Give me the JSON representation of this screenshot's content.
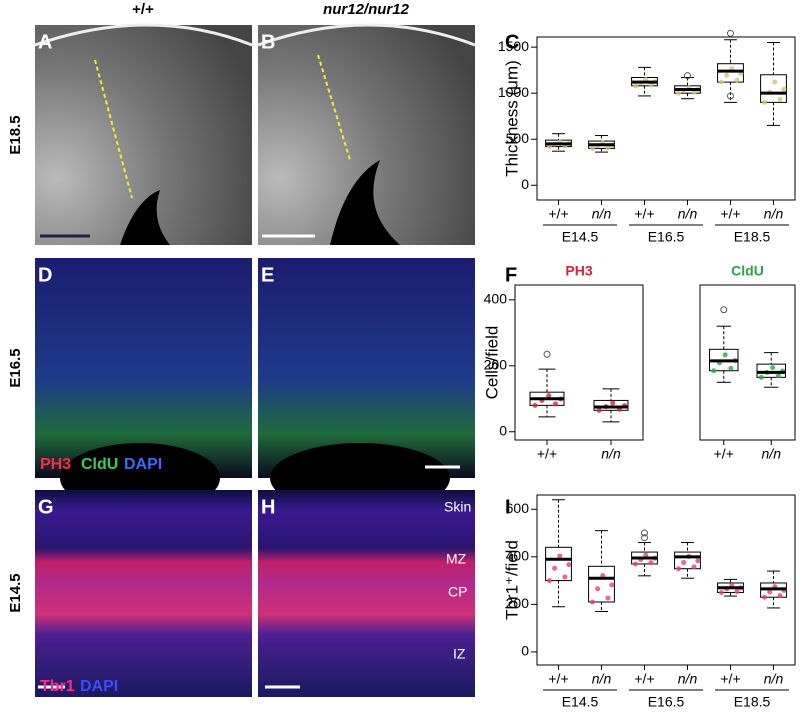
{
  "column_headers": [
    "+/+",
    "nur12/nur12"
  ],
  "row_labels": [
    "E18.5",
    "E16.5",
    "E14.5"
  ],
  "panel_letters": [
    "A",
    "B",
    "C",
    "D",
    "E",
    "F",
    "G",
    "H",
    "I"
  ],
  "stain_labels_e165": [
    "PH3",
    "CldU",
    "DAPI"
  ],
  "stain_labels_e145": [
    "Tbr1",
    "DAPI"
  ],
  "layer_labels": [
    "Skin",
    "MZ",
    "CP",
    "IZ"
  ],
  "chart_data": [
    {
      "type": "box",
      "ylabel": "Thickness (μm)",
      "categories": [
        "+/+",
        "n/n",
        "+/+",
        "n/n",
        "+/+",
        "n/n"
      ],
      "groups": [
        "E14.5",
        "E16.5",
        "E18.5"
      ],
      "ylim": [
        -160,
        1610
      ],
      "yticks": [
        0,
        500,
        1000,
        1500
      ],
      "color": "#cfc47a",
      "boxes": [
        {
          "whisker_low": 370,
          "q1": 420,
          "median": 450,
          "q3": 490,
          "whisker_high": 560,
          "outliers": []
        },
        {
          "whisker_low": 360,
          "q1": 400,
          "median": 440,
          "q3": 480,
          "whisker_high": 540,
          "outliers": []
        },
        {
          "whisker_low": 970,
          "q1": 1080,
          "median": 1120,
          "q3": 1170,
          "whisker_high": 1280,
          "outliers": []
        },
        {
          "whisker_low": 940,
          "q1": 1000,
          "median": 1040,
          "q3": 1080,
          "whisker_high": 1170,
          "outliers": [
            1190
          ]
        },
        {
          "whisker_low": 900,
          "q1": 1120,
          "median": 1240,
          "q3": 1320,
          "whisker_high": 1580,
          "outliers": [
            1650,
            970
          ]
        },
        {
          "whisker_low": 650,
          "q1": 900,
          "median": 1000,
          "q3": 1200,
          "whisker_high": 1550,
          "outliers": []
        }
      ]
    },
    {
      "type": "box",
      "title": "PH3",
      "ylabel": "Cells/field",
      "categories": [
        "+/+",
        "n/n"
      ],
      "ylim": [
        -25,
        445
      ],
      "yticks": [
        0,
        200,
        400
      ],
      "color": "#d0243c",
      "boxes": [
        {
          "whisker_low": 45,
          "q1": 80,
          "median": 100,
          "q3": 120,
          "whisker_high": 190,
          "outliers": [
            235
          ]
        },
        {
          "whisker_low": 30,
          "q1": 65,
          "median": 75,
          "q3": 95,
          "whisker_high": 130,
          "outliers": []
        }
      ]
    },
    {
      "type": "box",
      "title": "CldU",
      "categories": [
        "+/+",
        "n/n"
      ],
      "ylim": [
        -25,
        445
      ],
      "color": "#2ca24a",
      "boxes": [
        {
          "whisker_low": 150,
          "q1": 185,
          "median": 215,
          "q3": 250,
          "whisker_high": 320,
          "outliers": [
            370
          ]
        },
        {
          "whisker_low": 135,
          "q1": 165,
          "median": 180,
          "q3": 205,
          "whisker_high": 240,
          "outliers": []
        }
      ]
    },
    {
      "type": "box",
      "ylabel": "Tbr1⁺/field",
      "categories": [
        "+/+",
        "n/n",
        "+/+",
        "n/n",
        "+/+",
        "n/n"
      ],
      "groups": [
        "E14.5",
        "E16.5",
        "E18.5"
      ],
      "ylim": [
        -55,
        660
      ],
      "yticks": [
        0,
        200,
        400,
        600
      ],
      "color": "#e0407a",
      "boxes": [
        {
          "whisker_low": 190,
          "q1": 300,
          "median": 390,
          "q3": 440,
          "whisker_high": 640,
          "outliers": []
        },
        {
          "whisker_low": 170,
          "q1": 210,
          "median": 310,
          "q3": 360,
          "whisker_high": 510,
          "outliers": []
        },
        {
          "whisker_low": 320,
          "q1": 370,
          "median": 395,
          "q3": 420,
          "whisker_high": 460,
          "outliers": [
            480,
            500
          ]
        },
        {
          "whisker_low": 310,
          "q1": 350,
          "median": 400,
          "q3": 420,
          "whisker_high": 460,
          "outliers": []
        },
        {
          "whisker_low": 235,
          "q1": 250,
          "median": 270,
          "q3": 290,
          "whisker_high": 305,
          "outliers": []
        },
        {
          "whisker_low": 185,
          "q1": 230,
          "median": 265,
          "q3": 290,
          "whisker_high": 340,
          "outliers": []
        }
      ]
    }
  ]
}
